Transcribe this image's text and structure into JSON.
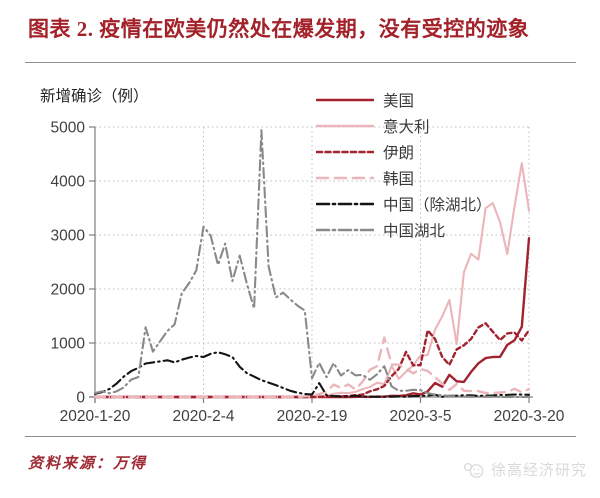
{
  "page": {
    "title": "图表 2. 疫情在欧美仍然处在爆发期，没有受控的迹象",
    "source_note": "资料来源：万得",
    "watermark_text": "徐高经济研究"
  },
  "colors": {
    "dark_red": "#A1232F",
    "pink": "#EBB6BA",
    "black": "#141414",
    "gray": "#898989",
    "title_red": "#A3222A",
    "source_red": "#9E2B33",
    "axis_gray": "#7F7F7F",
    "grid_gray": "#BDBDBD",
    "tick_text": "#404040",
    "watermark_gray": "#D9D9D9"
  },
  "chart_data": {
    "type": "line",
    "title": "新增确诊（例）",
    "ylabel": "新增确诊（例）",
    "xlabel": "",
    "ylim": [
      0,
      5000
    ],
    "yticks": [
      "0",
      "1000",
      "2000",
      "3000",
      "4000",
      "5000"
    ],
    "ytick_values": [
      0,
      1000,
      2000,
      3000,
      4000,
      5000
    ],
    "xtick_labels": [
      "2020-1-20",
      "2020-2-4",
      "2020-2-19",
      "2020-3-5",
      "2020-3-20"
    ],
    "xtick_days": [
      0,
      15,
      30,
      45,
      60
    ],
    "x_unit": "daily, days since 2020-1-20",
    "n_points": 61,
    "grid": "dotted",
    "legend_position": "top-right-inside",
    "series": [
      {
        "id": "usa",
        "name": "美国",
        "color": "dark_red",
        "style": "solid",
        "values": [
          0,
          0,
          0,
          0,
          0,
          1,
          0,
          0,
          0,
          0,
          0,
          0,
          0,
          0,
          0,
          0,
          0,
          0,
          0,
          0,
          0,
          0,
          0,
          0,
          0,
          0,
          0,
          0,
          0,
          0,
          0,
          0,
          0,
          0,
          0,
          0,
          1,
          6,
          1,
          8,
          6,
          23,
          19,
          31,
          68,
          45,
          105,
          260,
          190,
          410,
          290,
          280,
          465,
          625,
          720,
          740,
          745,
          965,
          1050,
          1300,
          2940
        ]
      },
      {
        "id": "italy",
        "name": "意大利",
        "color": "pink",
        "style": "solid",
        "values": [
          0,
          0,
          0,
          0,
          0,
          0,
          0,
          0,
          0,
          0,
          0,
          0,
          2,
          0,
          0,
          0,
          0,
          0,
          0,
          0,
          0,
          0,
          0,
          0,
          0,
          0,
          0,
          0,
          0,
          0,
          0,
          0,
          20,
          59,
          78,
          72,
          94,
          147,
          185,
          263,
          239,
          573,
          335,
          466,
          587,
          769,
          778,
          1247,
          1492,
          1797,
          977,
          2313,
          2651,
          2547,
          3497,
          3590,
          3233,
          2648,
          3526,
          4330,
          3450
        ]
      },
      {
        "id": "iran",
        "name": "伊朗",
        "color": "dark_red",
        "style": "dashed",
        "values": [
          0,
          0,
          0,
          0,
          0,
          0,
          0,
          0,
          0,
          0,
          0,
          0,
          0,
          0,
          0,
          0,
          0,
          0,
          0,
          0,
          0,
          0,
          0,
          0,
          0,
          0,
          0,
          0,
          0,
          0,
          2,
          3,
          13,
          10,
          15,
          18,
          34,
          44,
          106,
          143,
          205,
          385,
          523,
          835,
          586,
          591,
          1234,
          1076,
          743,
          595,
          881,
          958,
          1075,
          1289,
          1365,
          1209,
          1053,
          1178,
          1192,
          1046,
          1237
        ]
      },
      {
        "id": "south-korea",
        "name": "韩国",
        "color": "pink",
        "style": "long-dash",
        "values": [
          0,
          0,
          0,
          0,
          0,
          0,
          0,
          0,
          0,
          0,
          0,
          0,
          0,
          0,
          0,
          0,
          0,
          0,
          0,
          0,
          0,
          0,
          0,
          0,
          0,
          0,
          0,
          0,
          0,
          15,
          20,
          53,
          100,
          229,
          169,
          231,
          144,
          284,
          505,
          571,
          1100,
          600,
          600,
          516,
          438,
          518,
          483,
          367,
          248,
          131,
          242,
          114,
          110,
          107,
          76,
          74,
          84,
          93,
          152,
          87,
          147
        ]
      },
      {
        "id": "china-ex-hubei",
        "name": "中国（除湖北）",
        "color": "black",
        "style": "dash-dot",
        "values": [
          60,
          90,
          150,
          250,
          380,
          480,
          540,
          620,
          640,
          660,
          680,
          640,
          690,
          730,
          760,
          740,
          800,
          830,
          790,
          740,
          560,
          440,
          377,
          312,
          267,
          221,
          166,
          115,
          79,
          56,
          45,
          258,
          31,
          18,
          11,
          9,
          24,
          9,
          9,
          3,
          6,
          6,
          11,
          5,
          17,
          18,
          25,
          45,
          4,
          22,
          24,
          31,
          32,
          18,
          27,
          29,
          39,
          39,
          46,
          45,
          41
        ]
      },
      {
        "id": "china-hubei",
        "name": "中国湖北",
        "color": "gray",
        "style": "dash-dot",
        "values": [
          72,
          105,
          69,
          105,
          180,
          323,
          371,
          1291,
          840,
          1032,
          1220,
          1347,
          1921,
          2103,
          2345,
          3156,
          2987,
          2447,
          2841,
          2147,
          2618,
          2097,
          1638,
          4940,
          2420,
          1843,
          1933,
          1807,
          1693,
          1600,
          349,
          631,
          366,
          630,
          398,
          499,
          401,
          409,
          318,
          423,
          570,
          196,
          114,
          115,
          134,
          126,
          74,
          41,
          36,
          17,
          13,
          8,
          4,
          5,
          4,
          4,
          1,
          1,
          0,
          0,
          0
        ]
      }
    ]
  }
}
